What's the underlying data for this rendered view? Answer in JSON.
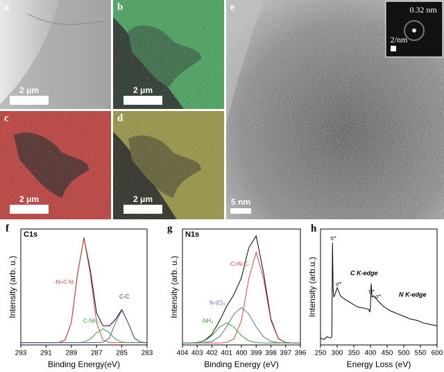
{
  "images": [
    {
      "label": "a",
      "scale_bar": "2 μm"
    },
    {
      "label": "b",
      "scale_bar": "2 μm"
    },
    {
      "label": "c",
      "scale_bar": "2 μm"
    },
    {
      "label": "d",
      "scale_bar": "2 μm"
    },
    {
      "label": "e",
      "scale_bar": "5 nm",
      "inset_spacing": "0.32 nm",
      "inset_scale": "2/nm"
    }
  ],
  "chart_data": [
    {
      "type": "line",
      "label": "f",
      "title": "C1s",
      "x_label": "Binding Energy(eV)",
      "y_label": "Intensity (arb. u.)",
      "x": [
        293,
        292.5,
        292,
        291.5,
        291,
        290.5,
        290,
        289.5,
        289,
        288.5,
        288,
        287.5,
        287,
        286.5,
        286,
        285.5,
        285,
        284.5,
        284,
        283.5,
        283
      ],
      "series": [
        {
          "color": "#000000",
          "values": [
            2,
            2,
            2,
            2,
            2,
            2,
            2.1,
            4.2,
            19.2,
            61.6,
            92.5,
            64.6,
            27.7,
            16.5,
            16.4,
            22,
            30.5,
            19,
            5.8,
            2.3,
            2
          ]
        },
        {
          "color": "#d9473a",
          "values": [
            2,
            2,
            2,
            2,
            2,
            2,
            2.1,
            4.2,
            19.2,
            61.6,
            92,
            61.6,
            19.2,
            4.2,
            2.1,
            2,
            2,
            2,
            2,
            2,
            2
          ]
        },
        {
          "color": "#3a9a3a",
          "values": [
            2,
            2,
            2,
            2,
            2,
            2,
            2,
            2,
            2,
            2,
            2.5,
            5,
            10.5,
            14,
            10.5,
            5,
            2.5,
            2,
            2,
            2,
            2
          ]
        },
        {
          "color": "#4a5a9a",
          "values": [
            2,
            2,
            2,
            2,
            2,
            2,
            2,
            2,
            2,
            2,
            2,
            2,
            2,
            2.3,
            5.8,
            19,
            30,
            19,
            5.8,
            2.3,
            2
          ]
        }
      ],
      "annotations": [
        {
          "text": "-N=C-N-",
          "color": "#d9473a"
        },
        {
          "text": "C-NH₂",
          "color": "#3a9a3a"
        },
        {
          "text": "C-C",
          "color": "#333333"
        }
      ],
      "xlim": [
        293,
        283
      ],
      "xticks": [
        293,
        291,
        289,
        287,
        285,
        283
      ],
      "ylim": [
        0,
        100
      ]
    },
    {
      "type": "line",
      "label": "g",
      "title": "N1s",
      "x_label": "Binding Energy (eV)",
      "y_label": "Intensity (arb. u.)",
      "x": [
        404,
        403.5,
        403,
        402.5,
        402,
        401.5,
        401,
        400.5,
        400,
        399.5,
        399,
        398.5,
        398,
        397.5,
        397,
        396.5,
        396
      ],
      "series": [
        {
          "color": "#000000",
          "values": [
            2,
            2,
            2.3,
            4.3,
            10.7,
            23.5,
            38.4,
            50.3,
            66.6,
            96.4,
            108.3,
            71.6,
            25.9,
            6.3,
            2.4,
            2,
            2
          ]
        },
        {
          "color": "#d9473a",
          "values": [
            2,
            2,
            2,
            2,
            2,
            2,
            2.4,
            6,
            24.4,
            65.6,
            92,
            65.6,
            24.4,
            6,
            2.4,
            2,
            2
          ]
        },
        {
          "color": "#5a6aaa",
          "values": [
            2,
            2,
            2,
            2.3,
            3.5,
            8,
            18,
            30.8,
            37,
            30.8,
            18,
            8,
            3.5,
            2.3,
            2,
            2,
            2
          ]
        },
        {
          "color": "#3a9a3a",
          "values": [
            2,
            2,
            2.3,
            4,
            9.2,
            17.5,
            22,
            17.5,
            9.2,
            4,
            2.3,
            2,
            2,
            2,
            2,
            2,
            2
          ]
        }
      ],
      "annotations": [
        {
          "text": "-C=N-C-",
          "color": "#d9473a"
        },
        {
          "text": "N-(C)₃",
          "color": "#5a6aaa"
        },
        {
          "text": "-NH₂",
          "color": "#3a9a3a"
        }
      ],
      "xlim": [
        404,
        396
      ],
      "xticks": [
        404,
        403,
        402,
        401,
        400,
        399,
        398,
        397,
        396
      ],
      "ylim": [
        0,
        115
      ]
    },
    {
      "type": "line",
      "label": "h",
      "x_label": "Energy Loss (eV)",
      "y_label": "Intensity (arb.u.)",
      "x": [
        250,
        260,
        270,
        280,
        284,
        286,
        288,
        290,
        295,
        300,
        310,
        320,
        340,
        360,
        380,
        395,
        398,
        400,
        402,
        405,
        410,
        420,
        440,
        460,
        480,
        500,
        520,
        540,
        560,
        580,
        600
      ],
      "series": [
        {
          "color": "#000000",
          "values": [
            5,
            4,
            6,
            5,
            6,
            75,
            40,
            35,
            38,
            42,
            36,
            34,
            31,
            28,
            27,
            26,
            24,
            28,
            45,
            35,
            36,
            33,
            28,
            25,
            23,
            21,
            19,
            18,
            16,
            15,
            14
          ]
        }
      ],
      "annotations": [
        {
          "text": "π*",
          "color": "#000000"
        },
        {
          "text": "σ*",
          "color": "#000000"
        },
        {
          "text": "C K-edge",
          "color": "#000000"
        },
        {
          "text": "π*",
          "color": "#000000"
        },
        {
          "text": "σ*",
          "color": "#000000"
        },
        {
          "text": "N K-edge",
          "color": "#000000"
        }
      ],
      "xlim": [
        250,
        600
      ],
      "xticks": [
        250,
        300,
        350,
        400,
        450,
        500,
        550,
        600
      ],
      "ylim": [
        0,
        85
      ]
    }
  ]
}
